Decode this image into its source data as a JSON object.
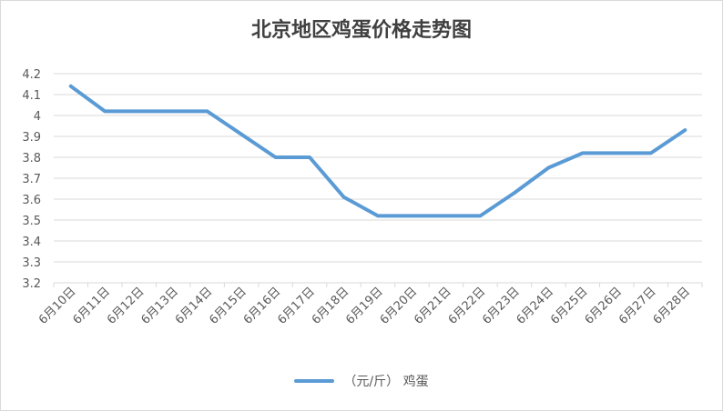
{
  "chart_data": {
    "type": "line",
    "title": "北京地区鸡蛋价格走势图",
    "xlabel": "",
    "ylabel": "",
    "categories": [
      "6月10日",
      "6月11日",
      "6月12日",
      "6月13日",
      "6月14日",
      "6月15日",
      "6月16日",
      "6月17日",
      "6月18日",
      "6月19日",
      "6月20日",
      "6月21日",
      "6月22日",
      "6月23日",
      "6月24日",
      "6月25日",
      "6月26日",
      "6月27日",
      "6月28日"
    ],
    "series": [
      {
        "name": "（元/斤） 鸡蛋",
        "color": "#5b9bd5",
        "values": [
          4.14,
          4.02,
          4.02,
          4.02,
          4.02,
          3.91,
          3.8,
          3.8,
          3.61,
          3.52,
          3.52,
          3.52,
          3.52,
          3.63,
          3.75,
          3.82,
          3.82,
          3.82,
          3.93
        ]
      }
    ],
    "ylim": [
      3.2,
      4.2
    ],
    "yticks": [
      "3.2",
      "3.3",
      "3.4",
      "3.5",
      "3.6",
      "3.7",
      "3.8",
      "3.9",
      "4",
      "4.1",
      "4.2"
    ],
    "grid": true,
    "legend_position": "bottom"
  }
}
